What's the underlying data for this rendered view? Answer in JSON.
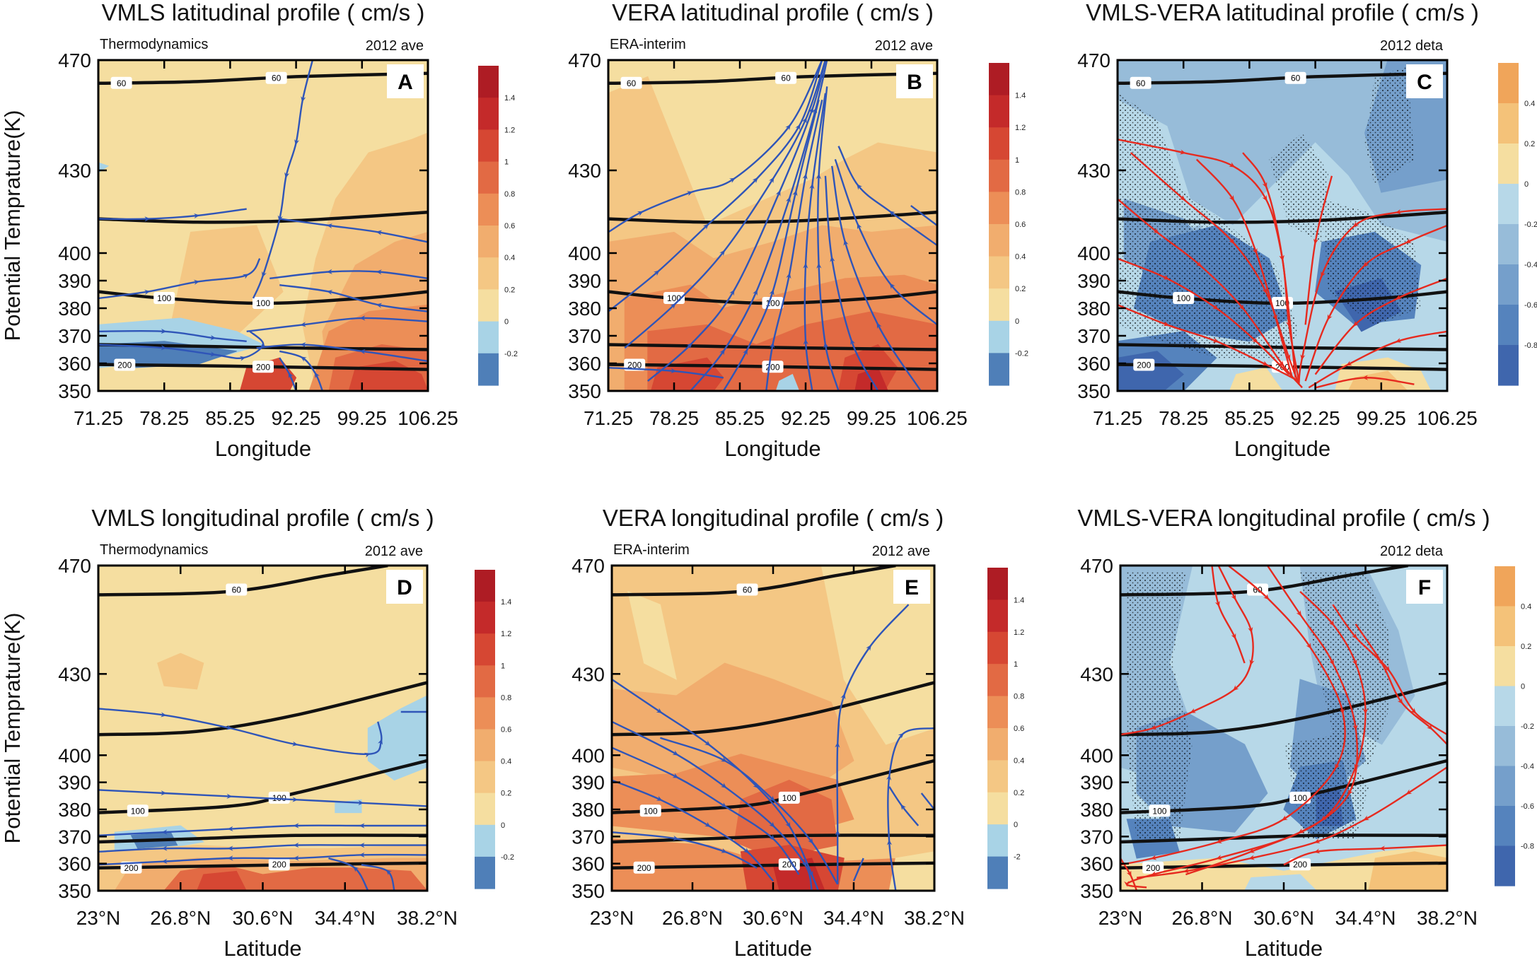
{
  "colors": {
    "levels": [
      "#4f7fb8",
      "#a8d3e6",
      "#f5dea0",
      "#f4c784",
      "#f1ad6e",
      "#ec8e57",
      "#e26a44",
      "#d64733",
      "#c42a2a",
      "#ae1c24"
    ],
    "diff_levels": [
      "#3f66ad",
      "#5583bd",
      "#759fcb",
      "#97bcd9",
      "#b7d8e8",
      "#f5dea0",
      "#f4c279",
      "#f0a55a"
    ],
    "stream_blue": "#2f55b8",
    "stream_red": "#e62a1f"
  },
  "colorbars": {
    "vera_seq": {
      "labels": [
        "1.4",
        "1.2",
        "1",
        "0.8",
        "0.6",
        "0.4",
        "0.2",
        "0",
        "-0.2"
      ]
    },
    "vera_seq_e": {
      "labels": [
        "1.4",
        "1.2",
        "1",
        "0.8",
        "0.6",
        "0.4",
        "0.2",
        "0",
        "-2"
      ]
    },
    "diff": {
      "labels": [
        "0.4",
        "0.2",
        "0",
        "-0.2",
        "-0.4",
        "-0.6",
        "-0.8"
      ]
    }
  },
  "panels": [
    {
      "id": "A",
      "title": "VMLS latitudinal profile ( cm/s )",
      "left_note": "Thermodynamics",
      "right_note": "2012 ave",
      "badge": "A",
      "xlabel": "Longitude",
      "ylabel": "Potential Temprature(K)",
      "xticks": [
        "71.25",
        "78.25",
        "85.25",
        "92.25",
        "99.25",
        "106.25"
      ],
      "yticks": [
        "470",
        "430",
        "400",
        "390",
        "380",
        "370",
        "360",
        "350"
      ],
      "contour_labels": [
        "60",
        "60",
        "100",
        "100",
        "200",
        "200"
      ],
      "chart_data": {
        "type": "heatmap",
        "quantity": "vertical velocity",
        "unit": "cm/s",
        "x_range": [
          71.25,
          106.25
        ],
        "y_range": [
          350,
          470
        ],
        "color_levels": [
          -0.2,
          0,
          0.2,
          0.4,
          0.6,
          0.8,
          1,
          1.2,
          1.4
        ]
      }
    },
    {
      "id": "B",
      "title": "VERA latitudinal profile ( cm/s )",
      "left_note": "ERA-interim",
      "right_note": "2012 ave",
      "badge": "B",
      "xlabel": "Longitude",
      "xticks": [
        "71.25",
        "78.25",
        "85.25",
        "92.25",
        "99.25",
        "106.25"
      ],
      "yticks": [
        "470",
        "430",
        "400",
        "390",
        "380",
        "370",
        "360",
        "350"
      ],
      "contour_labels": [
        "60",
        "60",
        "100",
        "100",
        "200",
        "200"
      ],
      "chart_data": {
        "type": "heatmap",
        "quantity": "vertical velocity",
        "unit": "cm/s",
        "x_range": [
          71.25,
          106.25
        ],
        "y_range": [
          350,
          470
        ],
        "color_levels": [
          -0.2,
          0,
          0.2,
          0.4,
          0.6,
          0.8,
          1,
          1.2,
          1.4
        ]
      }
    },
    {
      "id": "C",
      "title": "VMLS-VERA latitudinal profile ( cm/s )",
      "left_note": "",
      "right_note": "2012 deta",
      "badge": "C",
      "xlabel": "Longitude",
      "xticks": [
        "71.25",
        "78.25",
        "85.25",
        "92.25",
        "99.25",
        "106.25"
      ],
      "yticks": [
        "470",
        "430",
        "400",
        "390",
        "380",
        "370",
        "360",
        "350"
      ],
      "contour_labels": [
        "60",
        "60",
        "100",
        "100",
        "200",
        "200"
      ],
      "chart_data": {
        "type": "heatmap",
        "quantity": "vertical velocity difference",
        "unit": "cm/s",
        "x_range": [
          71.25,
          106.25
        ],
        "y_range": [
          350,
          470
        ],
        "color_levels": [
          -0.8,
          -0.6,
          -0.4,
          -0.2,
          0,
          0.2,
          0.4
        ]
      }
    },
    {
      "id": "D",
      "title": "VMLS longitudinal  profile ( cm/s )",
      "left_note": "Thermodynamics",
      "right_note": "2012 ave",
      "badge": "D",
      "xlabel": "Latitude",
      "ylabel": "Potential Temprature(K)",
      "xticks": [
        "23°N",
        "26.8°N",
        "30.6°N",
        "34.4°N",
        "38.2°N"
      ],
      "yticks": [
        "470",
        "430",
        "400",
        "390",
        "380",
        "370",
        "360",
        "350"
      ],
      "contour_labels": [
        "60",
        "100",
        "100",
        "200",
        "200"
      ],
      "chart_data": {
        "type": "heatmap",
        "quantity": "vertical velocity",
        "unit": "cm/s",
        "x_range": [
          23,
          38.2
        ],
        "y_range": [
          350,
          470
        ],
        "color_levels": [
          -0.2,
          0,
          0.2,
          0.4,
          0.6,
          0.8,
          1,
          1.2,
          1.4
        ]
      }
    },
    {
      "id": "E",
      "title": "VERA longitudinal  profile ( cm/s )",
      "left_note": "ERA-interim",
      "right_note": "2012 ave",
      "badge": "E",
      "xlabel": "Latitude",
      "xticks": [
        "23°N",
        "26.8°N",
        "30.6°N",
        "34.4°N",
        "38.2°N"
      ],
      "yticks": [
        "470",
        "430",
        "400",
        "390",
        "380",
        "370",
        "360",
        "350"
      ],
      "contour_labels": [
        "60",
        "100",
        "100",
        "200",
        "200"
      ],
      "chart_data": {
        "type": "heatmap",
        "quantity": "vertical velocity",
        "unit": "cm/s",
        "x_range": [
          23,
          38.2
        ],
        "y_range": [
          350,
          470
        ],
        "color_levels": [
          -2,
          0,
          0.2,
          0.4,
          0.6,
          0.8,
          1,
          1.2,
          1.4
        ]
      }
    },
    {
      "id": "F",
      "title": "VMLS-VERA longitudinal  profile ( cm/s )",
      "left_note": "",
      "right_note": "2012 deta",
      "badge": "F",
      "xlabel": "Latitude",
      "xticks": [
        "23°N",
        "26.8°N",
        "30.6°N",
        "34.4°N",
        "38.2°N"
      ],
      "yticks": [
        "470",
        "430",
        "400",
        "390",
        "380",
        "370",
        "360",
        "350"
      ],
      "contour_labels": [
        "60",
        "100",
        "100",
        "200",
        "200"
      ],
      "chart_data": {
        "type": "heatmap",
        "quantity": "vertical velocity difference",
        "unit": "cm/s",
        "x_range": [
          23,
          38.2
        ],
        "y_range": [
          350,
          470
        ],
        "color_levels": [
          -0.8,
          -0.6,
          -0.4,
          -0.2,
          0,
          0.2,
          0.4
        ]
      }
    }
  ]
}
